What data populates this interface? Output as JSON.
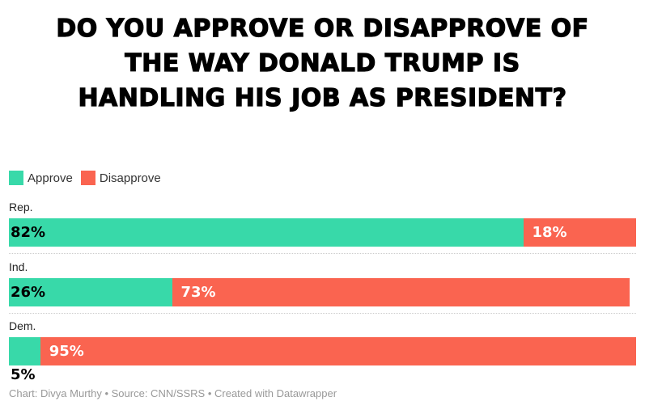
{
  "title_lines": [
    "DO YOU APPROVE OR DISAPPROVE OF",
    "THE WAY DONALD TRUMP IS",
    "HANDLING HIS JOB AS PRESIDENT?"
  ],
  "footer": "Chart: Divya Murthy • Source: CNN/SSRS • Created with Datawrapper",
  "chart_data": {
    "type": "bar",
    "orientation": "horizontal-stacked",
    "categories": [
      "Rep.",
      "Ind.",
      "Dem."
    ],
    "series": [
      {
        "name": "Approve",
        "color": "#38d9a9",
        "values": [
          82,
          26,
          5
        ]
      },
      {
        "name": "Disapprove",
        "color": "#fa6450",
        "values": [
          18,
          73,
          95
        ]
      }
    ],
    "labels": [
      [
        "82%",
        "18%"
      ],
      [
        "26%",
        "73%"
      ],
      [
        "5%",
        "95%"
      ]
    ],
    "xlim": [
      0,
      100
    ],
    "legend": "top-left",
    "grid": false
  }
}
